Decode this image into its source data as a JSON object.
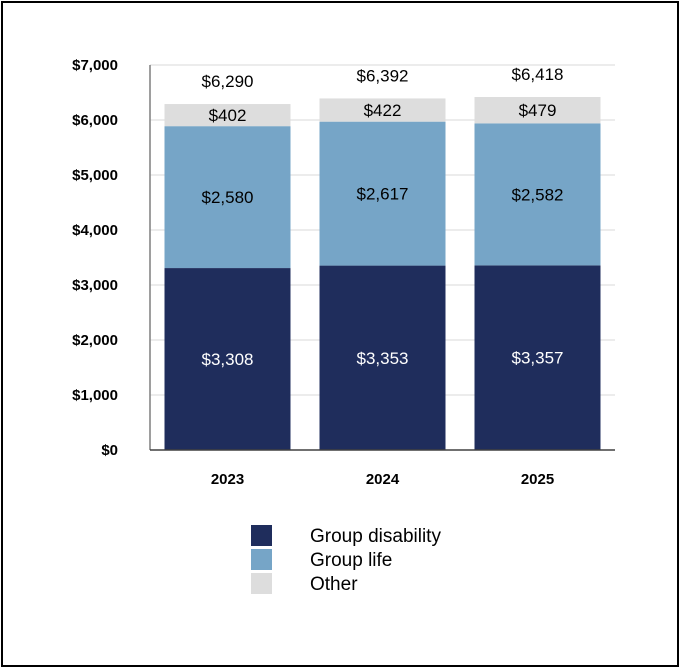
{
  "chart_data": {
    "type": "bar",
    "stacked": true,
    "categories": [
      "2023",
      "2024",
      "2025"
    ],
    "series": [
      {
        "name": "Group disability",
        "values": [
          3308,
          3353,
          3357
        ],
        "labels": [
          "$3,308",
          "$3,353",
          "$3,357"
        ],
        "color": "#1f2d5c",
        "label_color": "#ffffff"
      },
      {
        "name": "Group life",
        "values": [
          2580,
          2617,
          2582
        ],
        "labels": [
          "$2,580",
          "$2,617",
          "$2,582"
        ],
        "color": "#76a5c7",
        "label_color": "#000000"
      },
      {
        "name": "Other",
        "values": [
          402,
          422,
          479
        ],
        "labels": [
          "$402",
          "$422",
          "$479"
        ],
        "color": "#dddddd",
        "label_color": "#000000"
      }
    ],
    "totals": [
      6290,
      6392,
      6418
    ],
    "total_labels": [
      "$6,290",
      "$6,392",
      "$6,418"
    ],
    "ylim": [
      0,
      7000
    ],
    "yticks": [
      0,
      1000,
      2000,
      3000,
      4000,
      5000,
      6000,
      7000
    ],
    "ytick_labels": [
      "$0",
      "$1,000",
      "$2,000",
      "$3,000",
      "$4,000",
      "$5,000",
      "$6,000",
      "$7,000"
    ],
    "grid": true,
    "legend_position": "bottom"
  }
}
